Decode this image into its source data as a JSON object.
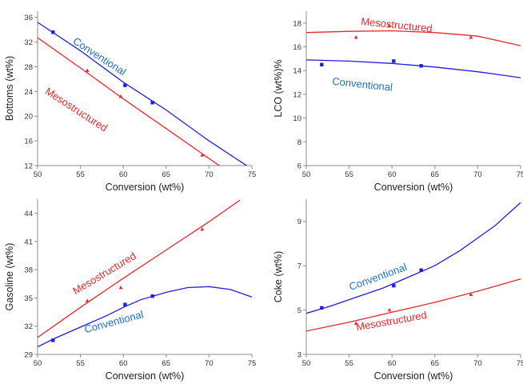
{
  "colors": {
    "conventional": "#1f1fe0",
    "mesostructured": "#e8282a",
    "conventional_label": "#1f70c8",
    "mesostructured_label": "#e8282a"
  },
  "chart_data": [
    {
      "id": "bottoms",
      "type": "line",
      "xlabel": "Conversion (wt%)",
      "ylabel": "Bottoms (wt%)",
      "xlim": [
        50,
        75
      ],
      "ylim": [
        12,
        37
      ],
      "xticks": [
        50,
        55,
        60,
        65,
        70,
        75
      ],
      "yticks": [
        12,
        16,
        20,
        24,
        28,
        32,
        36
      ],
      "series": [
        {
          "name": "Conventional",
          "color_key": "conventional",
          "marker": "square",
          "points": [
            [
              51.8,
              33.6
            ],
            [
              60.2,
              25.0
            ],
            [
              63.4,
              22.2
            ]
          ],
          "fit": [
            [
              50,
              35.2
            ],
            [
              55,
              30.6
            ],
            [
              60,
              25.5
            ],
            [
              65,
              21.0
            ],
            [
              70,
              16.0
            ],
            [
              74.5,
              11.9
            ]
          ],
          "label_angle": 33
        },
        {
          "name": "Mesostructured",
          "color_key": "mesostructured",
          "marker": "triangle",
          "points": [
            [
              55.8,
              27.4
            ],
            [
              59.7,
              23.2
            ],
            [
              69.2,
              13.7
            ]
          ],
          "fit": [
            [
              50,
              32.7
            ],
            [
              55,
              27.8
            ],
            [
              60,
              22.8
            ],
            [
              65,
              18.0
            ],
            [
              71.3,
              11.9
            ]
          ],
          "label_angle": 33
        }
      ]
    },
    {
      "id": "lco",
      "type": "line",
      "xlabel": "Conversion (wt%)",
      "ylabel": "LCO (wt%)%",
      "xlim": [
        50,
        75
      ],
      "ylim": [
        6,
        19
      ],
      "xticks": [
        50,
        55,
        60,
        65,
        70,
        75
      ],
      "yticks": [
        6,
        8,
        10,
        12,
        14,
        16,
        18
      ],
      "series": [
        {
          "name": "Mesostructured",
          "color_key": "mesostructured",
          "marker": "triangle",
          "points": [
            [
              55.8,
              16.8
            ],
            [
              59.7,
              17.8
            ],
            [
              69.2,
              16.8
            ]
          ],
          "fit": [
            [
              50,
              17.2
            ],
            [
              55,
              17.3
            ],
            [
              60,
              17.35
            ],
            [
              65,
              17.2
            ],
            [
              70,
              16.9
            ],
            [
              75,
              16.1
            ]
          ],
          "label_angle": 6
        },
        {
          "name": "Conventional",
          "color_key": "conventional",
          "marker": "square",
          "points": [
            [
              51.8,
              14.5
            ],
            [
              60.2,
              14.8
            ],
            [
              63.4,
              14.4
            ]
          ],
          "fit": [
            [
              50,
              14.9
            ],
            [
              55,
              14.8
            ],
            [
              60,
              14.6
            ],
            [
              65,
              14.3
            ],
            [
              70,
              13.9
            ],
            [
              75,
              13.4
            ]
          ],
          "label_angle": 6
        }
      ]
    },
    {
      "id": "gasoline",
      "type": "line",
      "xlabel": "Conversion (wt%)",
      "ylabel": "Gasoline (wt%)",
      "xlim": [
        50,
        75
      ],
      "ylim": [
        29,
        45.5
      ],
      "xticks": [
        50,
        55,
        60,
        65,
        70,
        75
      ],
      "yticks": [
        29,
        32,
        35,
        38,
        41,
        44
      ],
      "series": [
        {
          "name": "Mesostructured",
          "color_key": "mesostructured",
          "marker": "triangle",
          "points": [
            [
              55.8,
              34.7
            ],
            [
              59.7,
              36.1
            ],
            [
              69.2,
              42.3
            ]
          ],
          "fit": [
            [
              50,
              30.8
            ],
            [
              55,
              34.0
            ],
            [
              60,
              37.1
            ],
            [
              65,
              40.1
            ],
            [
              70,
              43.1
            ],
            [
              73.6,
              45.4
            ]
          ],
          "label_angle": -31
        },
        {
          "name": "Conventional",
          "color_key": "conventional",
          "marker": "square",
          "points": [
            [
              51.8,
              30.5
            ],
            [
              60.2,
              34.3
            ],
            [
              63.4,
              35.2
            ]
          ],
          "fit": [
            [
              50,
              29.8
            ],
            [
              52,
              30.7
            ],
            [
              55,
              31.9
            ],
            [
              58,
              33.1
            ],
            [
              60,
              34.0
            ],
            [
              62,
              34.8
            ],
            [
              65,
              35.6
            ],
            [
              67.5,
              36.1
            ],
            [
              70,
              36.2
            ],
            [
              72.5,
              35.9
            ],
            [
              75,
              35.1
            ]
          ],
          "label_angle": -15
        }
      ]
    },
    {
      "id": "coke",
      "type": "line",
      "xlabel": "Conversion (wt%)",
      "ylabel": "Coke (wt%)",
      "xlim": [
        50,
        75
      ],
      "ylim": [
        3,
        10
      ],
      "xticks": [
        50,
        55,
        60,
        65,
        70,
        75
      ],
      "yticks": [
        3,
        5,
        7,
        9
      ],
      "series": [
        {
          "name": "Conventional",
          "color_key": "conventional",
          "marker": "square",
          "points": [
            [
              51.8,
              5.1
            ],
            [
              60.2,
              6.1
            ],
            [
              63.4,
              6.8
            ]
          ],
          "fit": [
            [
              50,
              4.85
            ],
            [
              53,
              5.2
            ],
            [
              56,
              5.6
            ],
            [
              59,
              6.0
            ],
            [
              62,
              6.5
            ],
            [
              65,
              7.0
            ],
            [
              68,
              7.7
            ],
            [
              70,
              8.25
            ],
            [
              72,
              8.8
            ],
            [
              74,
              9.5
            ],
            [
              75,
              9.85
            ]
          ],
          "label_angle": -20
        },
        {
          "name": "Mesostructured",
          "color_key": "mesostructured",
          "marker": "triangle",
          "points": [
            [
              55.8,
              4.4
            ],
            [
              59.7,
              5.0
            ],
            [
              69.2,
              5.7
            ]
          ],
          "fit": [
            [
              50,
              4.05
            ],
            [
              55,
              4.45
            ],
            [
              60,
              4.9
            ],
            [
              65,
              5.35
            ],
            [
              70,
              5.85
            ],
            [
              75,
              6.4
            ]
          ],
          "label_angle": -10
        }
      ]
    }
  ]
}
